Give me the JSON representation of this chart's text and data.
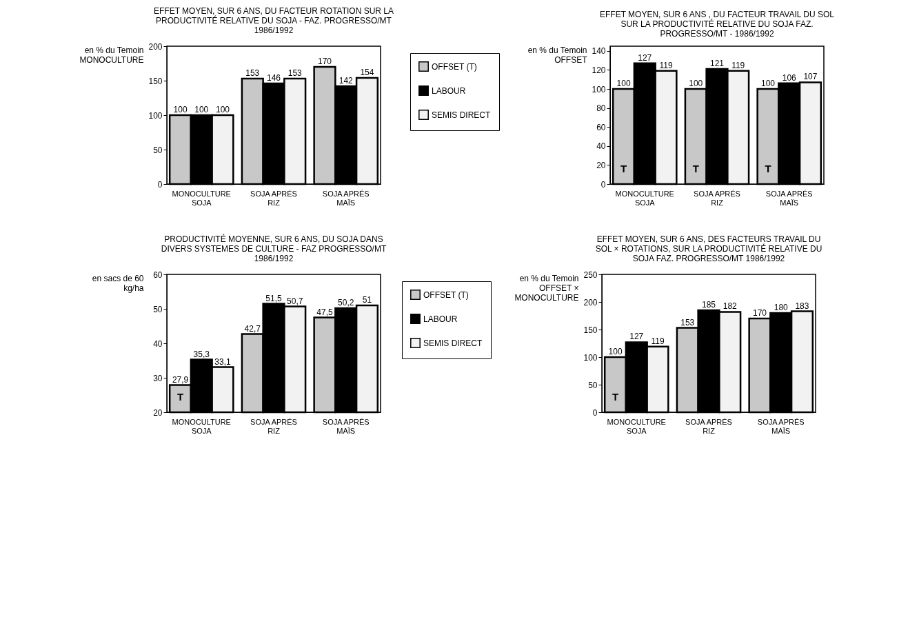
{
  "chart_data": [
    {
      "type": "bar",
      "title": "EFFET MOYEN, SUR 6 ANS, DU FACTEUR ROTATION SUR LA PRODUCTIVITÉ RELATIVE DU SOJA - FAZ. PROGRESSO/MT 1986/1992",
      "ylabel": "en % du Temoin MONOCULTURE",
      "categories": [
        "MONOCULTURE SOJA",
        "SOJA APRÉS RIZ",
        "SOJA APRÉS MAÏS"
      ],
      "series": [
        {
          "color": "#c8c8c8",
          "values": [
            100,
            153,
            170
          ]
        },
        {
          "color": "#000000",
          "values": [
            100,
            146,
            142
          ]
        },
        {
          "color": "#f2f2f2",
          "values": [
            100,
            153,
            154
          ]
        }
      ],
      "ylim": [
        0,
        200
      ],
      "yticks": [
        0,
        50,
        100,
        150,
        200
      ],
      "data_labels": true,
      "grid": false
    },
    {
      "type": "bar",
      "title": "EFFET MOYEN, SUR 6 ANS , DU FACTEUR TRAVAIL DU SOL SUR LA PRODUCTIVITÉ RELATIVE DU SOJA FAZ. PROGRESSO/MT - 1986/1992",
      "ylabel": "en % du Temoin OFFSET",
      "categories": [
        "MONOCULTURE SOJA",
        "SOJA APRÉS RIZ",
        "SOJA APRÉS MAÏS"
      ],
      "series": [
        {
          "name": "OFFSET (T)",
          "color": "#c8c8c8",
          "values": [
            100,
            100,
            100
          ]
        },
        {
          "name": "LABOUR",
          "color": "#000000",
          "values": [
            127,
            121,
            106
          ]
        },
        {
          "name": "SEMIS DIRECT",
          "color": "#f2f2f2",
          "values": [
            119,
            119,
            107
          ]
        }
      ],
      "ylim": [
        0,
        145
      ],
      "yticks": [
        0,
        20,
        40,
        60,
        80,
        100,
        120,
        140
      ],
      "data_labels": true,
      "grid": false,
      "legend": "left",
      "annotations": [
        "T",
        "T",
        "T"
      ]
    },
    {
      "type": "bar",
      "title": "PRODUCTIVITÉ MOYENNE, SUR 6 ANS, DU SOJA DANS DIVERS SYSTEMES DE CULTURE - FAZ PROGRESSO/MT 1986/1992",
      "ylabel": "en sacs de 60 kg/ha",
      "categories": [
        "MONOCULTURE SOJA",
        "SOJA APRÉS RIZ",
        "SOJA APRÉS MAÏS"
      ],
      "series": [
        {
          "color": "#c8c8c8",
          "values": [
            27.9,
            42.7,
            47.5
          ],
          "value_labels": [
            "27,9",
            "42,7",
            "47,5"
          ]
        },
        {
          "color": "#000000",
          "values": [
            35.3,
            51.5,
            50.2
          ],
          "value_labels": [
            "35,3",
            "51,5",
            "50,2"
          ]
        },
        {
          "color": "#f2f2f2",
          "values": [
            33.1,
            50.7,
            51
          ],
          "value_labels": [
            "33,1",
            "50,7",
            "51"
          ]
        }
      ],
      "ylim": [
        20,
        60
      ],
      "yticks": [
        20,
        30,
        40,
        50,
        60
      ],
      "grid": false,
      "annotations": [
        "T"
      ]
    },
    {
      "type": "bar",
      "title": "EFFET MOYEN, SUR 6 ANS, DES FACTEURS TRAVAIL DU SOL × ROTATIONS, SUR LA PRODUCTIVITÉ RELATIVE DU SOJA FAZ. PROGRESSO/MT 1986/1992",
      "ylabel": "en % du Temoin OFFSET × MONOCULTURE",
      "categories": [
        "MONOCULTURE SOJA",
        "SOJA APRÉS RIZ",
        "SOJA APRÉS MAÏS"
      ],
      "series": [
        {
          "name": "OFFSET (T)",
          "color": "#c8c8c8",
          "values": [
            100,
            153,
            170
          ]
        },
        {
          "name": "LABOUR",
          "color": "#000000",
          "values": [
            127,
            185,
            180
          ]
        },
        {
          "name": "SEMIS DIRECT",
          "color": "#f2f2f2",
          "values": [
            119,
            182,
            183
          ]
        }
      ],
      "ylim": [
        0,
        250
      ],
      "yticks": [
        0,
        50,
        100,
        150,
        200,
        250
      ],
      "data_labels": true,
      "grid": false,
      "legend": "left",
      "annotations": [
        "T"
      ]
    }
  ]
}
